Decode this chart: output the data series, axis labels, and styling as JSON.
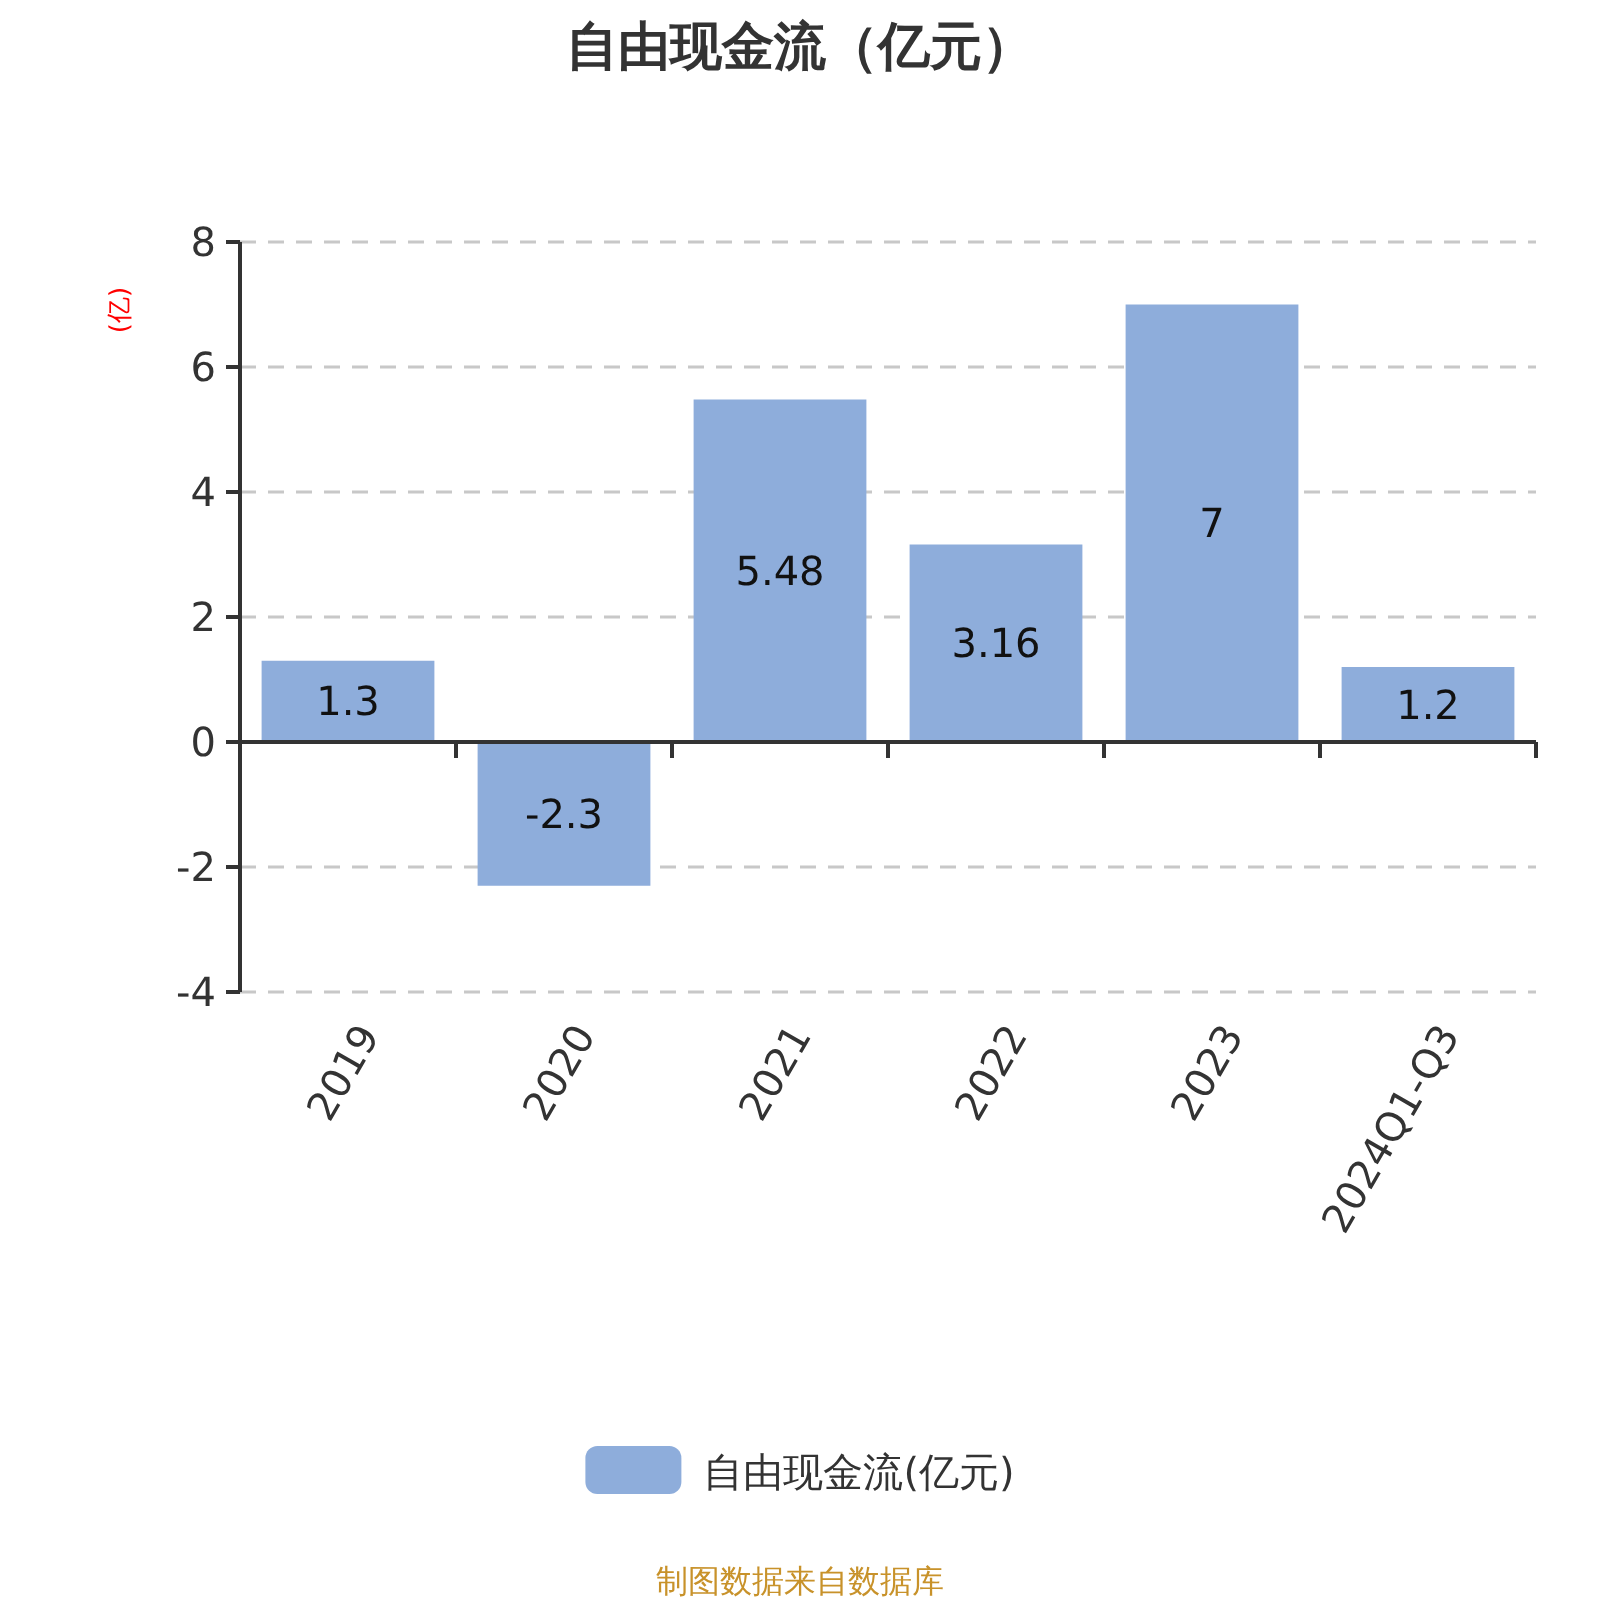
{
  "chart_data": {
    "type": "bar",
    "title": "自由现金流（亿元）",
    "ylabel": "(亿)",
    "categories": [
      "2019",
      "2020",
      "2021",
      "2022",
      "2023",
      "2024Q1-Q3"
    ],
    "series": [
      {
        "name": "自由现金流(亿元)",
        "color": "#8eaddb",
        "values": [
          1.3,
          -2.3,
          5.48,
          3.16,
          7,
          1.2
        ]
      }
    ],
    "ylim": [
      -4,
      8
    ],
    "yticks": [
      -4,
      -2,
      0,
      2,
      4,
      6,
      8
    ],
    "grid": "y",
    "legend": "bottom",
    "data_labels": true,
    "annotations": [
      "制图数据来自数据库"
    ]
  }
}
